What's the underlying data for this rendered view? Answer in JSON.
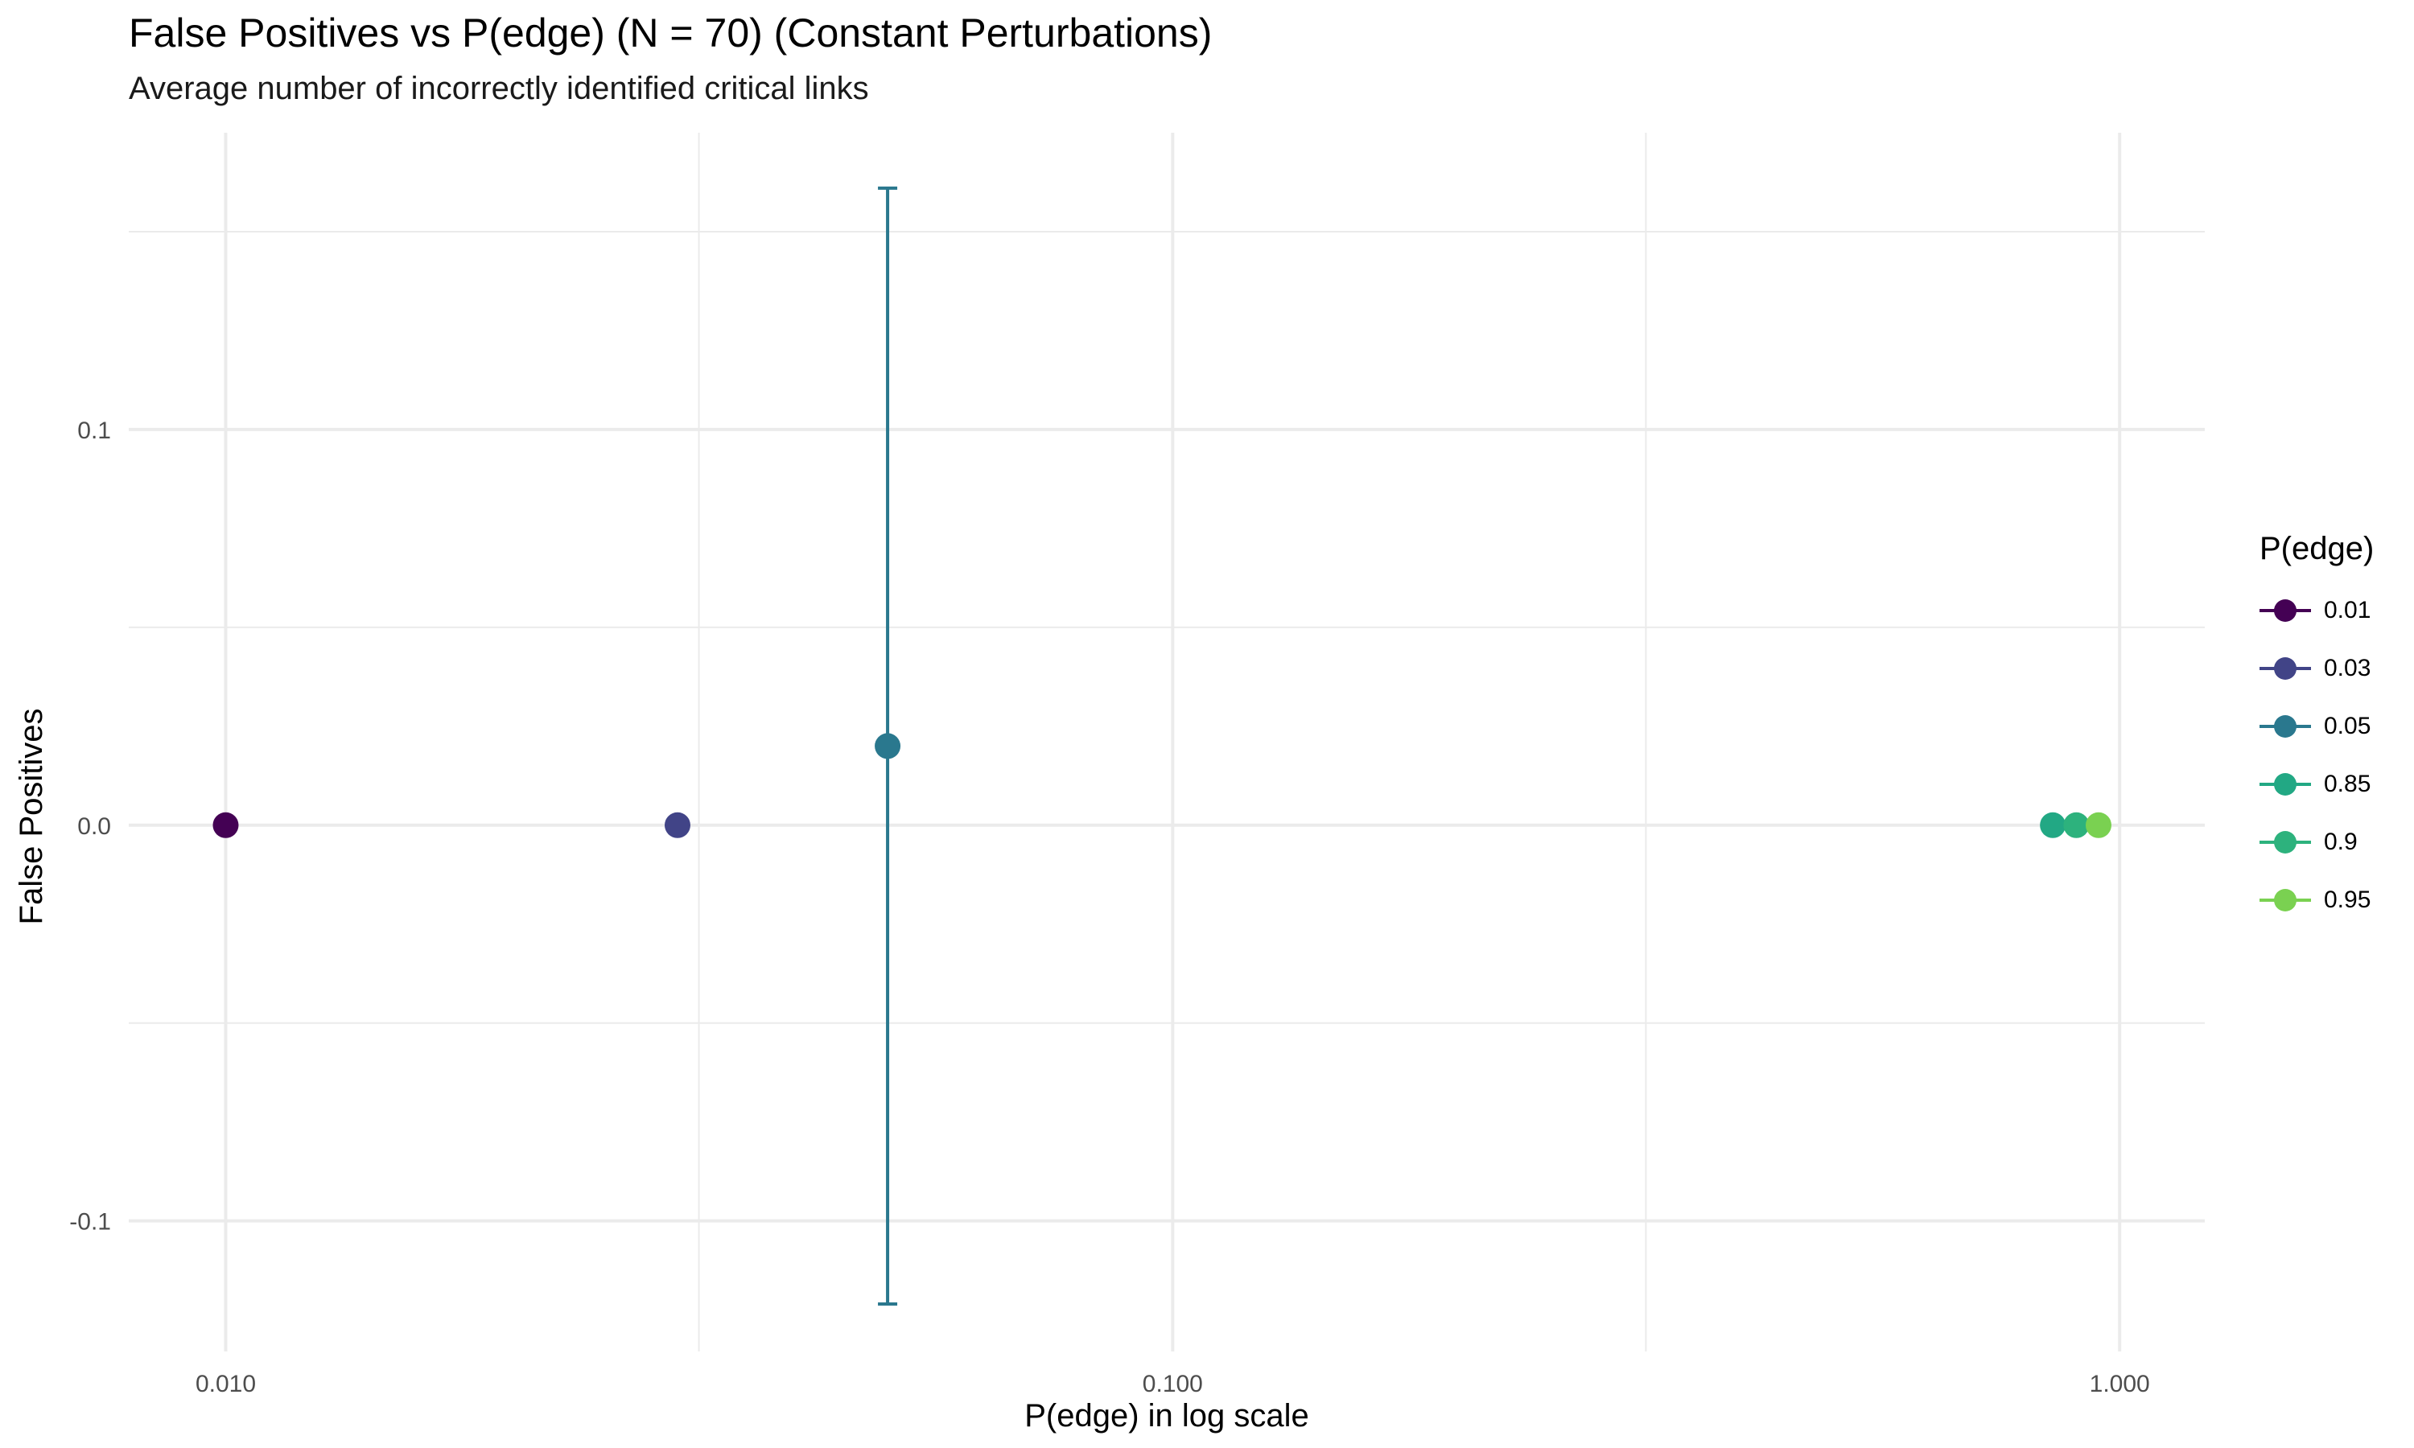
{
  "chart_data": {
    "type": "scatter",
    "title": "False Positives vs P(edge) (N = 70) (Constant Perturbations)",
    "subtitle": "Average number of incorrectly identified critical links",
    "xlabel": "P(edge) in log scale",
    "ylabel": "False Positives",
    "x_scale": "log10",
    "xlim": [
      0.0079,
      1.23
    ],
    "ylim": [
      -0.133,
      0.175
    ],
    "x_ticks": [
      0.01,
      0.1,
      1.0
    ],
    "x_tick_labels": [
      "0.010",
      "0.100",
      "1.000"
    ],
    "x_minor_ticks": [
      0.0316,
      0.316
    ],
    "y_ticks": [
      0.1,
      0.0,
      -0.1
    ],
    "y_tick_labels": [
      "0.1",
      "0.0",
      "-0.1"
    ],
    "y_minor_ticks": [
      0.15,
      0.05,
      -0.05
    ],
    "grid": true,
    "legend": {
      "title": "P(edge)",
      "placement": "right"
    },
    "series": [
      {
        "name": "0.01",
        "x": 0.01,
        "y": 0.0,
        "color": "#440154"
      },
      {
        "name": "0.03",
        "x": 0.03,
        "y": 0.0,
        "color": "#414487"
      },
      {
        "name": "0.05",
        "x": 0.05,
        "y": 0.02,
        "color": "#2A788E",
        "error_low": -0.121,
        "error_high": 0.161
      },
      {
        "name": "0.85",
        "x": 0.85,
        "y": 0.0,
        "color": "#22A884"
      },
      {
        "name": "0.9",
        "x": 0.9,
        "y": 0.0,
        "color": "#2DB27D"
      },
      {
        "name": "0.95",
        "x": 0.95,
        "y": 0.0,
        "color": "#7AD151"
      }
    ]
  }
}
